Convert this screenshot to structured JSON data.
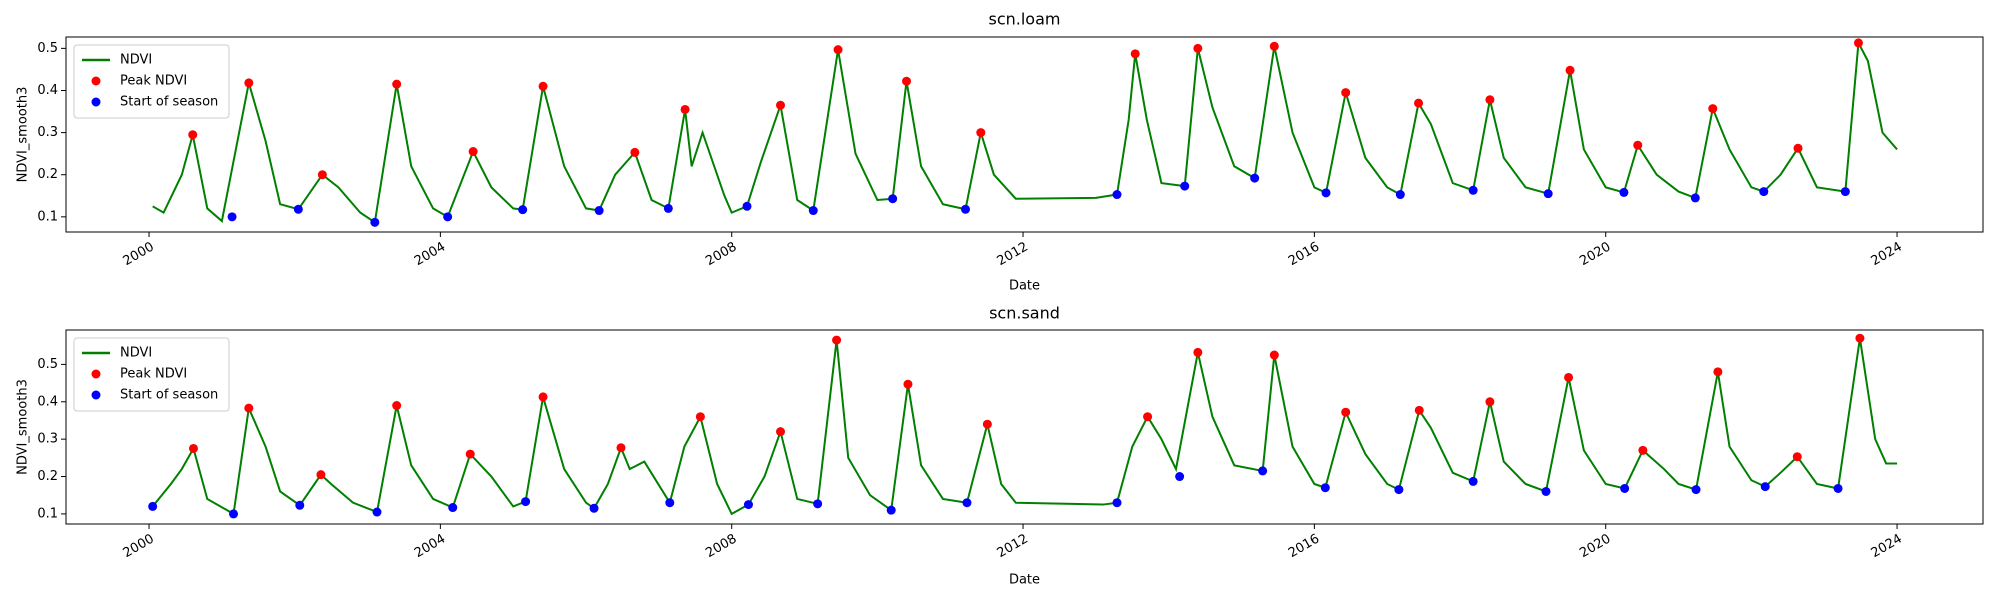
{
  "chart_data": [
    {
      "type": "line",
      "title": "scn.loam",
      "x_label": "Date",
      "y_label": "NDVI_smooth3",
      "xlim": [
        1998.86,
        2025.18
      ],
      "xticks": [
        2000,
        2004,
        2008,
        2012,
        2016,
        2020,
        2024
      ],
      "ylim": [
        0.064,
        0.527
      ],
      "yticks": [
        0.1,
        0.2,
        0.3,
        0.4,
        0.5
      ],
      "legend": "upper left",
      "series": [
        {
          "name": "NDVI",
          "type": "line",
          "color": "#008000",
          "x": [
            2000.05,
            2000.2,
            2000.45,
            2000.6,
            2000.8,
            2001.0,
            2001.37,
            2001.6,
            2001.8,
            2002.05,
            2002.38,
            2002.6,
            2002.9,
            2003.1,
            2003.4,
            2003.6,
            2003.9,
            2004.1,
            2004.45,
            2004.7,
            2005.0,
            2005.13,
            2005.41,
            2005.7,
            2006.0,
            2006.18,
            2006.4,
            2006.67,
            2006.9,
            2007.13,
            2007.36,
            2007.45,
            2007.6,
            2007.9,
            2008.0,
            2008.21,
            2008.4,
            2008.67,
            2008.9,
            2009.12,
            2009.46,
            2009.7,
            2010.0,
            2010.21,
            2010.4,
            2010.6,
            2010.9,
            2011.21,
            2011.42,
            2011.6,
            2011.9,
            2013.0,
            2013.29,
            2013.45,
            2013.54,
            2013.7,
            2013.9,
            2014.22,
            2014.4,
            2014.6,
            2014.9,
            2015.18,
            2015.45,
            2015.7,
            2016.0,
            2016.16,
            2016.43,
            2016.7,
            2017.0,
            2017.18,
            2017.43,
            2017.6,
            2017.9,
            2018.18,
            2018.41,
            2018.6,
            2018.9,
            2019.21,
            2019.51,
            2019.7,
            2020.0,
            2020.25,
            2020.44,
            2020.7,
            2021.0,
            2021.23,
            2021.47,
            2021.7,
            2022.0,
            2022.17,
            2022.4,
            2022.64,
            2022.9,
            2023.29,
            2023.47,
            2023.6,
            2023.8,
            2024.0
          ],
          "values": [
            0.125,
            0.11,
            0.2,
            0.295,
            0.12,
            0.09,
            0.418,
            0.28,
            0.13,
            0.118,
            0.2,
            0.17,
            0.11,
            0.087,
            0.415,
            0.22,
            0.12,
            0.1,
            0.255,
            0.17,
            0.12,
            0.117,
            0.41,
            0.22,
            0.12,
            0.115,
            0.2,
            0.253,
            0.14,
            0.12,
            0.355,
            0.22,
            0.3,
            0.15,
            0.11,
            0.125,
            0.23,
            0.365,
            0.14,
            0.115,
            0.497,
            0.25,
            0.14,
            0.143,
            0.422,
            0.22,
            0.13,
            0.118,
            0.3,
            0.2,
            0.143,
            0.145,
            0.153,
            0.33,
            0.487,
            0.33,
            0.18,
            0.173,
            0.5,
            0.36,
            0.22,
            0.192,
            0.505,
            0.3,
            0.17,
            0.157,
            0.395,
            0.24,
            0.17,
            0.153,
            0.37,
            0.32,
            0.18,
            0.163,
            0.378,
            0.24,
            0.17,
            0.155,
            0.448,
            0.26,
            0.17,
            0.158,
            0.27,
            0.2,
            0.16,
            0.145,
            0.357,
            0.26,
            0.17,
            0.16,
            0.2,
            0.263,
            0.17,
            0.16,
            0.513,
            0.47,
            0.3,
            0.26
          ]
        },
        {
          "name": "Peak NDVI",
          "type": "scatter",
          "color": "#ff0000",
          "x": [
            2000.6,
            2001.37,
            2002.38,
            2003.4,
            2004.45,
            2005.41,
            2006.67,
            2007.36,
            2008.67,
            2009.46,
            2010.4,
            2011.42,
            2013.54,
            2014.4,
            2015.45,
            2016.43,
            2017.43,
            2018.41,
            2019.51,
            2020.44,
            2021.47,
            2022.64,
            2023.47
          ],
          "values": [
            0.295,
            0.418,
            0.2,
            0.415,
            0.255,
            0.41,
            0.253,
            0.355,
            0.365,
            0.497,
            0.422,
            0.3,
            0.487,
            0.5,
            0.505,
            0.395,
            0.37,
            0.378,
            0.448,
            0.27,
            0.357,
            0.263,
            0.513
          ]
        },
        {
          "name": "Start of season",
          "type": "scatter",
          "color": "#0000ff",
          "x": [
            2001.14,
            2002.05,
            2003.1,
            2004.1,
            2005.13,
            2006.18,
            2007.13,
            2008.21,
            2009.12,
            2010.21,
            2011.21,
            2013.29,
            2014.22,
            2015.18,
            2016.16,
            2017.18,
            2018.18,
            2019.21,
            2020.25,
            2021.23,
            2022.17,
            2023.29
          ],
          "values": [
            0.1,
            0.118,
            0.087,
            0.1,
            0.117,
            0.115,
            0.12,
            0.125,
            0.115,
            0.143,
            0.118,
            0.153,
            0.173,
            0.192,
            0.157,
            0.153,
            0.163,
            0.155,
            0.158,
            0.145,
            0.16,
            0.16
          ]
        }
      ]
    },
    {
      "type": "line",
      "title": "scn.sand",
      "x_label": "Date",
      "y_label": "NDVI_smooth3",
      "xlim": [
        1998.86,
        2025.18
      ],
      "xticks": [
        2000,
        2004,
        2008,
        2012,
        2016,
        2020,
        2024
      ],
      "ylim": [
        0.073,
        0.592
      ],
      "yticks": [
        0.1,
        0.2,
        0.3,
        0.4,
        0.5
      ],
      "legend": "upper left",
      "series": [
        {
          "name": "NDVI",
          "type": "line",
          "color": "#008000",
          "x": [
            2000.05,
            2000.3,
            2000.45,
            2000.61,
            2000.8,
            2001.16,
            2001.37,
            2001.6,
            2001.8,
            2002.07,
            2002.36,
            2002.5,
            2002.8,
            2003.13,
            2003.4,
            2003.6,
            2003.9,
            2004.17,
            2004.41,
            2004.7,
            2005.0,
            2005.17,
            2005.41,
            2005.7,
            2006.0,
            2006.11,
            2006.3,
            2006.48,
            2006.6,
            2006.8,
            2007.15,
            2007.35,
            2007.57,
            2007.8,
            2008.0,
            2008.23,
            2008.45,
            2008.67,
            2008.9,
            2009.18,
            2009.44,
            2009.6,
            2009.9,
            2010.19,
            2010.42,
            2010.6,
            2010.9,
            2011.23,
            2011.51,
            2011.7,
            2011.9,
            2013.1,
            2013.29,
            2013.5,
            2013.71,
            2013.9,
            2014.1,
            2014.4,
            2014.6,
            2014.9,
            2015.29,
            2015.45,
            2015.7,
            2016.0,
            2016.15,
            2016.43,
            2016.7,
            2017.0,
            2017.16,
            2017.44,
            2017.6,
            2017.9,
            2018.18,
            2018.41,
            2018.6,
            2018.9,
            2019.18,
            2019.49,
            2019.7,
            2020.0,
            2020.26,
            2020.51,
            2020.8,
            2021.0,
            2021.24,
            2021.54,
            2021.7,
            2022.0,
            2022.19,
            2022.4,
            2022.63,
            2022.9,
            2023.19,
            2023.49,
            2023.7,
            2023.85,
            2024.0
          ],
          "values": [
            0.12,
            0.18,
            0.22,
            0.275,
            0.14,
            0.1,
            0.383,
            0.28,
            0.16,
            0.123,
            0.205,
            0.18,
            0.13,
            0.105,
            0.39,
            0.23,
            0.14,
            0.117,
            0.26,
            0.2,
            0.12,
            0.133,
            0.413,
            0.22,
            0.13,
            0.115,
            0.18,
            0.277,
            0.22,
            0.24,
            0.13,
            0.28,
            0.36,
            0.18,
            0.1,
            0.125,
            0.2,
            0.32,
            0.14,
            0.127,
            0.565,
            0.25,
            0.15,
            0.11,
            0.447,
            0.23,
            0.14,
            0.13,
            0.34,
            0.18,
            0.13,
            0.125,
            0.13,
            0.28,
            0.36,
            0.3,
            0.22,
            0.532,
            0.36,
            0.23,
            0.215,
            0.525,
            0.28,
            0.18,
            0.17,
            0.372,
            0.26,
            0.18,
            0.165,
            0.377,
            0.33,
            0.21,
            0.187,
            0.4,
            0.24,
            0.18,
            0.16,
            0.465,
            0.27,
            0.18,
            0.168,
            0.27,
            0.22,
            0.18,
            0.165,
            0.48,
            0.28,
            0.19,
            0.173,
            0.21,
            0.253,
            0.18,
            0.168,
            0.57,
            0.3,
            0.235,
            0.235
          ]
        },
        {
          "name": "Peak NDVI",
          "type": "scatter",
          "color": "#ff0000",
          "x": [
            2000.61,
            2001.37,
            2002.36,
            2003.4,
            2004.41,
            2005.41,
            2006.48,
            2007.57,
            2008.67,
            2009.44,
            2010.42,
            2011.51,
            2013.71,
            2014.4,
            2015.45,
            2016.43,
            2017.44,
            2018.41,
            2019.49,
            2020.51,
            2021.54,
            2022.63,
            2023.49
          ],
          "values": [
            0.275,
            0.383,
            0.205,
            0.39,
            0.26,
            0.413,
            0.277,
            0.36,
            0.32,
            0.565,
            0.447,
            0.34,
            0.36,
            0.532,
            0.525,
            0.372,
            0.377,
            0.4,
            0.465,
            0.27,
            0.48,
            0.253,
            0.57
          ]
        },
        {
          "name": "Start of season",
          "type": "scatter",
          "color": "#0000ff",
          "x": [
            2000.05,
            2001.16,
            2002.07,
            2003.13,
            2004.17,
            2005.17,
            2006.11,
            2007.15,
            2008.23,
            2009.18,
            2010.19,
            2011.23,
            2013.29,
            2014.15,
            2015.29,
            2016.15,
            2017.16,
            2018.18,
            2019.18,
            2020.26,
            2021.24,
            2022.19,
            2023.19
          ],
          "values": [
            0.12,
            0.1,
            0.123,
            0.105,
            0.117,
            0.133,
            0.115,
            0.13,
            0.125,
            0.127,
            0.11,
            0.13,
            0.13,
            0.2,
            0.215,
            0.17,
            0.165,
            0.187,
            0.16,
            0.168,
            0.165,
            0.173,
            0.168
          ]
        }
      ]
    }
  ]
}
